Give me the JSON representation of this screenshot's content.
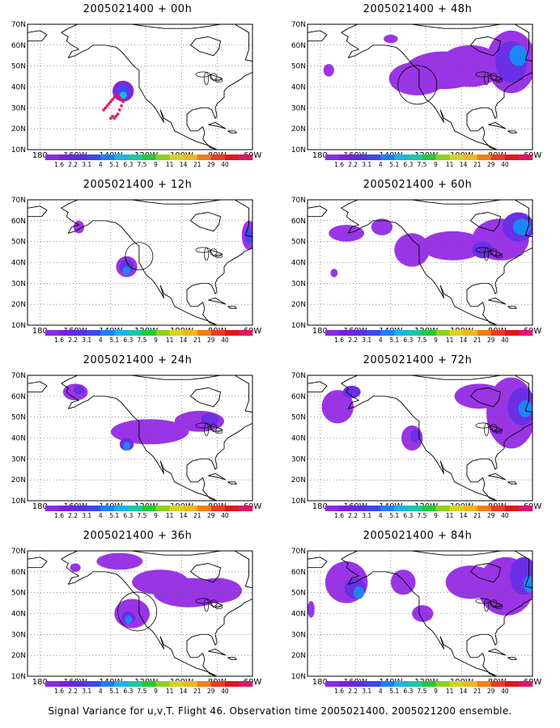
{
  "panels": [
    {
      "title": "2005021400 + 00h"
    },
    {
      "title": "2005021400 + 48h"
    },
    {
      "title": "2005021400 + 12h"
    },
    {
      "title": "2005021400 + 60h"
    },
    {
      "title": "2005021400 + 24h"
    },
    {
      "title": "2005021400 + 72h"
    },
    {
      "title": "2005021400 + 36h"
    },
    {
      "title": "2005021400 + 84h"
    }
  ],
  "lat_labels": [
    "70N",
    "60N",
    "50N",
    "40N",
    "30N",
    "20N",
    "10N"
  ],
  "lon_labels": [
    "180",
    "160W",
    "140W",
    "120W",
    "100W",
    "80W",
    "60W"
  ],
  "colorbar": {
    "labels": [
      "1.6",
      "2.2",
      "3.1",
      "4",
      "5.1",
      "6.3",
      "7.5",
      "9",
      "11",
      "14",
      "21",
      "29",
      "40"
    ],
    "colors": [
      "#8a2be2",
      "#7a1fe0",
      "#5a2ee6",
      "#3c48f0",
      "#1f7ff7",
      "#1cb2e6",
      "#18c8a5",
      "#22c83a",
      "#8ad21c",
      "#d8d21e",
      "#f0b81c",
      "#f07e16",
      "#ee3a22",
      "#e01818",
      "#e0156a"
    ]
  },
  "footer": "Signal Variance for u,v,T. Flight 46. Observation time 2005021400. 2005021200 ensemble.",
  "map": {
    "lon_range": [
      "170E",
      "60W"
    ],
    "lat_range": [
      "10N",
      "70N"
    ],
    "grid": "dotted",
    "observation_marks": "red dots (00h panel)",
    "circle_marks": [
      "48h",
      "12h",
      "36h"
    ]
  }
}
